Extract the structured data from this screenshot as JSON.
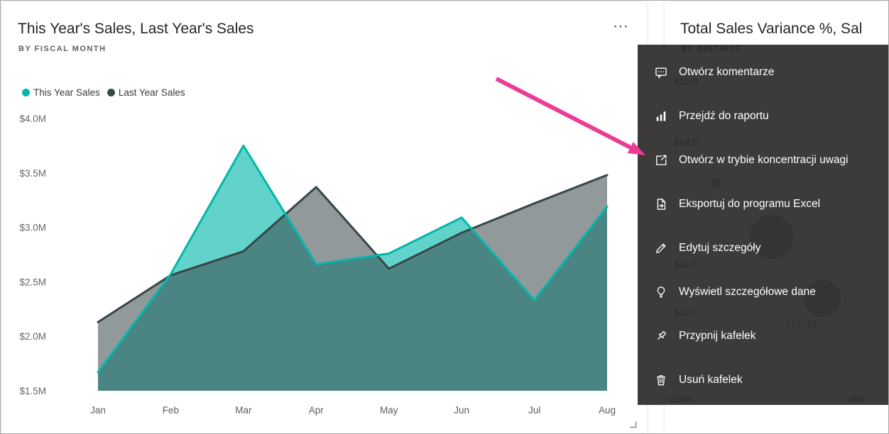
{
  "left_tile": {
    "title": "This Year's Sales, Last Year's Sales",
    "subtitle": "BY FISCAL MONTH",
    "more_options": "⋯",
    "legend": [
      {
        "label": "This Year Sales",
        "color": "#01B8AA"
      },
      {
        "label": "Last Year Sales",
        "color": "#374649"
      }
    ]
  },
  "chart_data": {
    "type": "area",
    "title": "This Year's Sales, Last Year's Sales by Fiscal Month",
    "x": [
      "Jan",
      "Feb",
      "Mar",
      "Apr",
      "May",
      "Jun",
      "Jul",
      "Aug"
    ],
    "series": [
      {
        "name": "This Year Sales",
        "color": "#01B8AA",
        "values": [
          1.67,
          2.57,
          3.75,
          2.66,
          2.76,
          3.09,
          2.33,
          3.19
        ]
      },
      {
        "name": "Last Year Sales",
        "color": "#374649",
        "values": [
          2.13,
          2.56,
          2.78,
          3.37,
          2.62,
          2.95,
          3.22,
          3.48
        ]
      }
    ],
    "value_unit": "$M",
    "ylim": [
      1.5,
      4.0
    ],
    "y_ticks": [
      {
        "v": 1.5,
        "label": "$1.5M"
      },
      {
        "v": 2.0,
        "label": "$2.0M"
      },
      {
        "v": 2.5,
        "label": "$2.5M"
      },
      {
        "v": 3.0,
        "label": "$3.0M"
      },
      {
        "v": 3.5,
        "label": "$3.5M"
      },
      {
        "v": 4.0,
        "label": "$4.0M"
      }
    ],
    "grid": false,
    "legend_position": "top-left"
  },
  "right_tile": {
    "title": "Total Sales Variance %, Sal",
    "subtitle": "BY DISTRICT",
    "y_axis_labels": [
      "$15.0",
      "$14.5",
      "$13.5",
      "$13.0"
    ],
    "x_axis_labels": [
      "-210%",
      "-8%"
    ],
    "point_label": "LLI - 01"
  },
  "context_menu": {
    "items": [
      {
        "icon": "comment-icon",
        "label": "Otwórz komentarze"
      },
      {
        "icon": "report-icon",
        "label": "Przejdź do raportu"
      },
      {
        "icon": "focus-mode-icon",
        "label": "Otwórz w trybie koncentracji uwagi"
      },
      {
        "icon": "export-excel-icon",
        "label": "Eksportuj do programu Excel"
      },
      {
        "icon": "pencil-icon",
        "label": "Edytuj szczegóły"
      },
      {
        "icon": "insights-icon",
        "label": "Wyświetl szczegółowe dane"
      },
      {
        "icon": "pin-icon",
        "label": "Przypnij kafelek"
      },
      {
        "icon": "trash-icon",
        "label": "Usuń kafelek"
      }
    ]
  },
  "annotation": {
    "arrow_color": "#EB3C96"
  }
}
